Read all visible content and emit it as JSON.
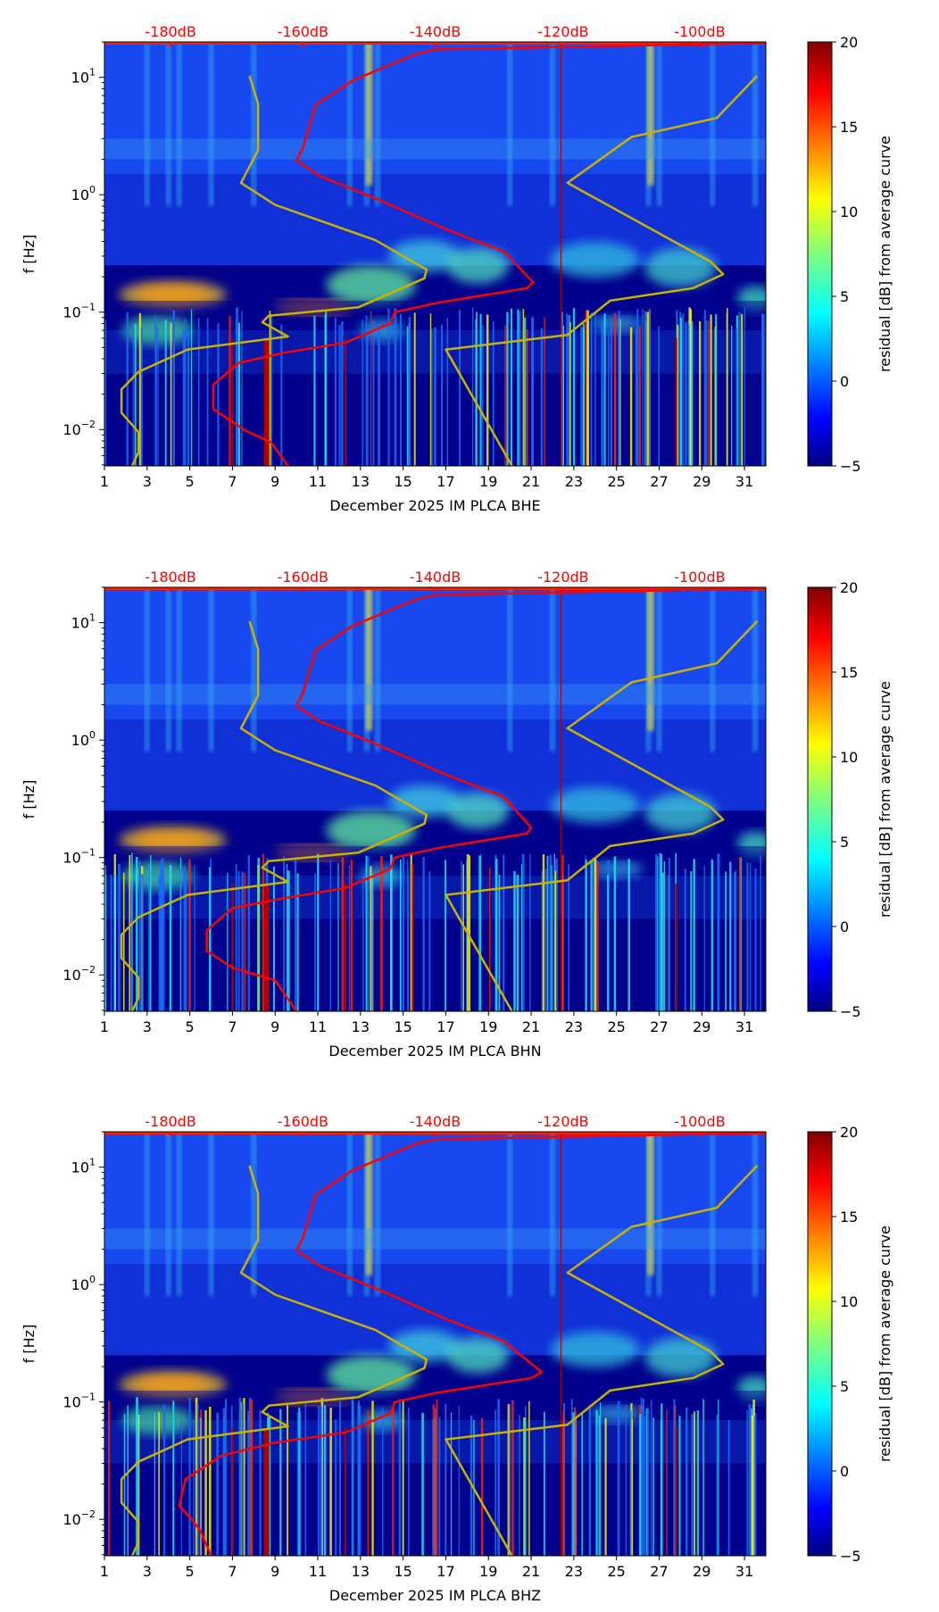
{
  "chart_data": [
    {
      "type": "heatmap",
      "xlabel": "December 2025 IM PLCA  BHE",
      "ylabel": "f [Hz]",
      "colorbar_label": "residual [dB] from average curve",
      "x_ticks": [
        "1",
        "3",
        "5",
        "7",
        "9",
        "11",
        "13",
        "15",
        "17",
        "19",
        "21",
        "23",
        "25",
        "27",
        "29",
        "31"
      ],
      "xlim": [
        1,
        32
      ],
      "ylim": [
        0.0049,
        20
      ],
      "y_scale": "log",
      "y_ticks": [
        "10^-2",
        "10^-1",
        "10^0",
        "10^1"
      ],
      "colorbar_range": [
        -5,
        20
      ],
      "colorbar_ticks": [
        "−5",
        "0",
        "5",
        "10",
        "15",
        "20"
      ],
      "top_axis": [
        {
          "label": "-180dB",
          "day": 4.1
        },
        {
          "label": "-160dB",
          "day": 10.3
        },
        {
          "label": "-140dB",
          "day": 16.5
        },
        {
          "label": "-120dB",
          "day": 22.5
        },
        {
          "label": "-100dB",
          "day": 28.9
        }
      ],
      "series": [
        {
          "name": "red-psd-curve",
          "color": "#ff0000",
          "points": [
            [
              32,
              19.6
            ],
            [
              16.6,
              17.3
            ],
            [
              15.7,
              16
            ],
            [
              14.3,
              12.6
            ],
            [
              12.6,
              9.3
            ],
            [
              10.9,
              5.8
            ],
            [
              10.3,
              2.5
            ],
            [
              10,
              1.95
            ],
            [
              11.1,
              1.44
            ],
            [
              13.7,
              0.93
            ],
            [
              17.1,
              0.5
            ],
            [
              19.7,
              0.33
            ],
            [
              21.1,
              0.18
            ],
            [
              20.8,
              0.16
            ],
            [
              16.6,
              0.12
            ],
            [
              14.6,
              0.1
            ],
            [
              14.4,
              0.08
            ],
            [
              12.3,
              0.055
            ],
            [
              9.4,
              0.045
            ],
            [
              7.3,
              0.037
            ],
            [
              6.1,
              0.024
            ],
            [
              6.1,
              0.015
            ],
            [
              7.6,
              0.0098
            ],
            [
              8.8,
              0.0078
            ],
            [
              9.6,
              0.0049
            ]
          ]
        },
        {
          "name": "yellow-noise-model-low",
          "color": "#c8b400",
          "points": [
            [
              7.8,
              10.3
            ],
            [
              8.2,
              5.97
            ],
            [
              8.2,
              2.39
            ],
            [
              7.4,
              1.26
            ],
            [
              9,
              0.82
            ],
            [
              13.7,
              0.41
            ],
            [
              16.1,
              0.23
            ],
            [
              16,
              0.194
            ],
            [
              12.9,
              0.11
            ],
            [
              8.7,
              0.093
            ],
            [
              8.4,
              0.082
            ],
            [
              9.6,
              0.062
            ],
            [
              4.9,
              0.048
            ],
            [
              2.6,
              0.031
            ],
            [
              1.8,
              0.022
            ],
            [
              1.8,
              0.0139
            ],
            [
              2.6,
              0.0095
            ],
            [
              2.6,
              0.0064
            ],
            [
              2.3,
              0.0049
            ]
          ]
        },
        {
          "name": "yellow-noise-model-high",
          "color": "#c8b400",
          "points": [
            [
              31.6,
              10.3
            ],
            [
              29.7,
              4.5
            ],
            [
              25.7,
              3.1
            ],
            [
              22.7,
              1.26
            ],
            [
              29.4,
              0.27
            ],
            [
              30,
              0.21
            ],
            [
              28.6,
              0.16
            ],
            [
              24.7,
              0.125
            ],
            [
              22.7,
              0.064
            ],
            [
              17,
              0.048
            ],
            [
              20.1,
              0.0049
            ]
          ]
        }
      ]
    },
    {
      "type": "heatmap",
      "xlabel": "December 2025 IM PLCA  BHN",
      "ylabel": "f [Hz]",
      "colorbar_label": "residual [dB] from average curve",
      "x_ticks": [
        "1",
        "3",
        "5",
        "7",
        "9",
        "11",
        "13",
        "15",
        "17",
        "19",
        "21",
        "23",
        "25",
        "27",
        "29",
        "31"
      ],
      "xlim": [
        1,
        32
      ],
      "ylim": [
        0.0049,
        20
      ],
      "y_scale": "log",
      "y_ticks": [
        "10^-2",
        "10^-1",
        "10^0",
        "10^1"
      ],
      "colorbar_range": [
        -5,
        20
      ],
      "colorbar_ticks": [
        "−5",
        "0",
        "5",
        "10",
        "15",
        "20"
      ],
      "top_axis": [
        {
          "label": "-180dB",
          "day": 4.1
        },
        {
          "label": "-160dB",
          "day": 10.3
        },
        {
          "label": "-140dB",
          "day": 16.5
        },
        {
          "label": "-120dB",
          "day": 22.5
        },
        {
          "label": "-100dB",
          "day": 28.9
        }
      ],
      "series": [
        {
          "name": "red-psd-curve",
          "color": "#ff0000",
          "points": [
            [
              32,
              19.6
            ],
            [
              16.6,
              17.3
            ],
            [
              15.7,
              16
            ],
            [
              14.3,
              12.6
            ],
            [
              12.6,
              9.3
            ],
            [
              10.9,
              5.8
            ],
            [
              10.3,
              2.5
            ],
            [
              10,
              1.95
            ],
            [
              11.1,
              1.44
            ],
            [
              13.7,
              0.93
            ],
            [
              17.1,
              0.5
            ],
            [
              19.7,
              0.33
            ],
            [
              21,
              0.18
            ],
            [
              20.8,
              0.16
            ],
            [
              16.6,
              0.12
            ],
            [
              14.6,
              0.1
            ],
            [
              14.4,
              0.08
            ],
            [
              12.3,
              0.055
            ],
            [
              9.4,
              0.045
            ],
            [
              7,
              0.037
            ],
            [
              5.8,
              0.024
            ],
            [
              5.8,
              0.016
            ],
            [
              7,
              0.0115
            ],
            [
              9,
              0.009
            ],
            [
              10,
              0.0049
            ]
          ]
        },
        {
          "name": "yellow-noise-model-low",
          "color": "#c8b400",
          "points": [
            [
              7.8,
              10.3
            ],
            [
              8.2,
              5.97
            ],
            [
              8.2,
              2.39
            ],
            [
              7.4,
              1.26
            ],
            [
              9,
              0.82
            ],
            [
              13.7,
              0.41
            ],
            [
              16.1,
              0.23
            ],
            [
              16,
              0.194
            ],
            [
              12.9,
              0.11
            ],
            [
              8.7,
              0.093
            ],
            [
              8.4,
              0.082
            ],
            [
              9.6,
              0.062
            ],
            [
              4.9,
              0.048
            ],
            [
              2.6,
              0.031
            ],
            [
              1.8,
              0.022
            ],
            [
              1.8,
              0.0139
            ],
            [
              2.6,
              0.0095
            ],
            [
              2.6,
              0.0064
            ],
            [
              2.3,
              0.0049
            ]
          ]
        },
        {
          "name": "yellow-noise-model-high",
          "color": "#c8b400",
          "points": [
            [
              31.6,
              10.3
            ],
            [
              29.7,
              4.5
            ],
            [
              25.7,
              3.1
            ],
            [
              22.7,
              1.26
            ],
            [
              29.4,
              0.27
            ],
            [
              30,
              0.21
            ],
            [
              28.6,
              0.16
            ],
            [
              24.7,
              0.125
            ],
            [
              22.7,
              0.064
            ],
            [
              17,
              0.048
            ],
            [
              20.1,
              0.0049
            ]
          ]
        }
      ]
    },
    {
      "type": "heatmap",
      "xlabel": "December 2025 IM PLCA  BHZ",
      "ylabel": "f [Hz]",
      "colorbar_label": "residual [dB] from average curve",
      "x_ticks": [
        "1",
        "3",
        "5",
        "7",
        "9",
        "11",
        "13",
        "15",
        "17",
        "19",
        "21",
        "23",
        "25",
        "27",
        "29",
        "31"
      ],
      "xlim": [
        1,
        32
      ],
      "ylim": [
        0.0049,
        20
      ],
      "y_scale": "log",
      "y_ticks": [
        "10^-2",
        "10^-1",
        "10^0",
        "10^1"
      ],
      "colorbar_range": [
        -5,
        20
      ],
      "colorbar_ticks": [
        "−5",
        "0",
        "5",
        "10",
        "15",
        "20"
      ],
      "top_axis": [
        {
          "label": "-180dB",
          "day": 4.1
        },
        {
          "label": "-160dB",
          "day": 10.3
        },
        {
          "label": "-140dB",
          "day": 16.5
        },
        {
          "label": "-120dB",
          "day": 22.5
        },
        {
          "label": "-100dB",
          "day": 28.9
        }
      ],
      "series": [
        {
          "name": "red-psd-curve",
          "color": "#ff0000",
          "points": [
            [
              32,
              19.6
            ],
            [
              16.6,
              17.3
            ],
            [
              15.7,
              16
            ],
            [
              14.3,
              12.6
            ],
            [
              12.6,
              9.3
            ],
            [
              10.9,
              5.8
            ],
            [
              10.3,
              2.5
            ],
            [
              10,
              1.95
            ],
            [
              11.1,
              1.44
            ],
            [
              13.7,
              0.93
            ],
            [
              17.1,
              0.5
            ],
            [
              19.7,
              0.33
            ],
            [
              21.5,
              0.18
            ],
            [
              21,
              0.16
            ],
            [
              16.6,
              0.12
            ],
            [
              14.6,
              0.1
            ],
            [
              14.4,
              0.08
            ],
            [
              12.3,
              0.055
            ],
            [
              9,
              0.045
            ],
            [
              6.5,
              0.035
            ],
            [
              4.8,
              0.022
            ],
            [
              4.5,
              0.013
            ],
            [
              5,
              0.0105
            ],
            [
              5.5,
              0.008
            ],
            [
              6,
              0.0049
            ]
          ]
        },
        {
          "name": "yellow-noise-model-low",
          "color": "#c8b400",
          "points": [
            [
              7.8,
              10.3
            ],
            [
              8.2,
              5.97
            ],
            [
              8.2,
              2.39
            ],
            [
              7.4,
              1.26
            ],
            [
              9,
              0.82
            ],
            [
              13.7,
              0.41
            ],
            [
              16.1,
              0.23
            ],
            [
              16,
              0.194
            ],
            [
              12.9,
              0.11
            ],
            [
              8.7,
              0.093
            ],
            [
              8.4,
              0.082
            ],
            [
              9.6,
              0.062
            ],
            [
              4.9,
              0.048
            ],
            [
              2.6,
              0.031
            ],
            [
              1.8,
              0.022
            ],
            [
              1.8,
              0.0139
            ],
            [
              2.6,
              0.0095
            ],
            [
              2.6,
              0.0064
            ],
            [
              2.3,
              0.0049
            ]
          ]
        },
        {
          "name": "yellow-noise-model-high",
          "color": "#c8b400",
          "points": [
            [
              31.6,
              10.3
            ],
            [
              29.7,
              4.5
            ],
            [
              25.7,
              3.1
            ],
            [
              22.7,
              1.26
            ],
            [
              29.4,
              0.27
            ],
            [
              30,
              0.21
            ],
            [
              28.6,
              0.16
            ],
            [
              24.7,
              0.125
            ],
            [
              22.7,
              0.064
            ],
            [
              17,
              0.048
            ],
            [
              20.1,
              0.0049
            ]
          ]
        }
      ]
    }
  ]
}
